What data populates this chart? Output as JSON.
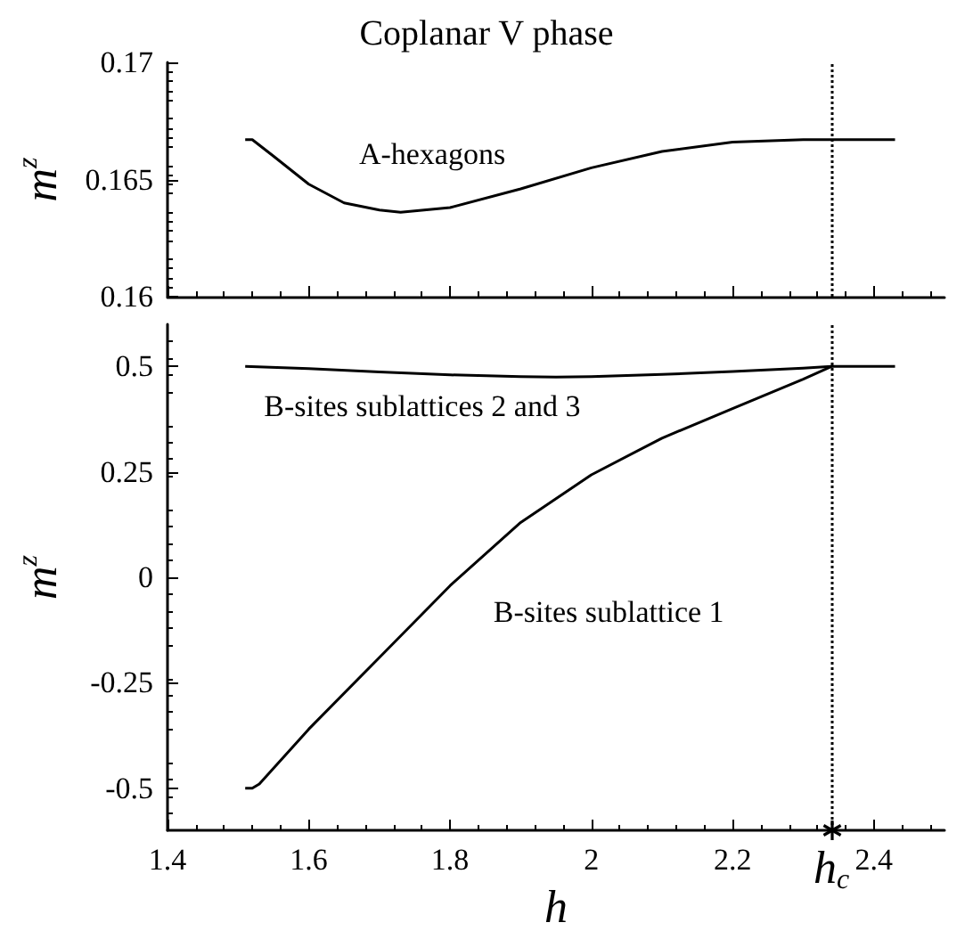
{
  "chart_data": [
    {
      "type": "line",
      "title": "Coplanar V phase",
      "ylabel": "m$^{z}$",
      "xlim": [
        1.4,
        2.5
      ],
      "xticks": [
        1.4,
        1.6,
        1.8,
        2,
        2.2,
        2.4
      ],
      "ylim": [
        0.16,
        0.17
      ],
      "yticks": [
        0.16,
        0.165,
        0.17
      ],
      "tick_labels": "y",
      "grid": false,
      "marker": "none",
      "line_style": "solid",
      "series": [
        {
          "color": "#000000",
          "x": [
            1.51,
            1.52,
            1.55,
            1.6,
            1.65,
            1.7,
            1.73,
            1.8,
            1.9,
            2.0,
            2.1,
            2.2,
            2.3,
            2.43
          ],
          "values": [
            0.1667,
            0.1667,
            0.166,
            0.1648,
            0.164,
            0.1637,
            0.1636,
            0.1638,
            0.1646,
            0.1655,
            0.1662,
            0.1666,
            0.1667,
            0.1667
          ]
        }
      ],
      "annotations": [
        "A-hexagons"
      ],
      "ref_lines": [
        {
          "axis": "x",
          "value": 2.34,
          "label": null,
          "line_style": "dotted",
          "color": "#000000"
        }
      ]
    },
    {
      "type": "line",
      "xlabel": "h",
      "ylabel": "m$^{z}$",
      "xlim": [
        1.4,
        2.5
      ],
      "xticks": [
        1.4,
        1.6,
        1.8,
        2,
        2.2,
        2.4
      ],
      "ylim": [
        -0.6,
        0.6
      ],
      "yticks": [
        -0.5,
        -0.25,
        0,
        0.25,
        0.5
      ],
      "grid": false,
      "marker": "none",
      "line_style": "solid",
      "series": [
        {
          "color": "#000000",
          "x": [
            1.51,
            1.6,
            1.7,
            1.8,
            1.9,
            1.95,
            2.0,
            2.1,
            2.2,
            2.3,
            2.34,
            2.43
          ],
          "values": [
            0.5,
            0.495,
            0.487,
            0.48,
            0.476,
            0.475,
            0.476,
            0.481,
            0.488,
            0.496,
            0.5,
            0.5
          ]
        },
        {
          "color": "#000000",
          "x": [
            1.51,
            1.52,
            1.53,
            1.6,
            1.7,
            1.8,
            1.9,
            2.0,
            2.1,
            2.2,
            2.3,
            2.34
          ],
          "values": [
            -0.5,
            -0.5,
            -0.49,
            -0.36,
            -0.19,
            -0.02,
            0.13,
            0.243,
            0.33,
            0.4,
            0.47,
            0.5
          ]
        }
      ],
      "annotations": [
        "B-sites sublattices 2 and 3",
        "B-sites sublattice 1"
      ],
      "ref_lines": [
        {
          "axis": "x",
          "value": 2.34,
          "label": "h$_{c}$",
          "line_style": "dotted",
          "color": "#000000"
        }
      ]
    }
  ]
}
